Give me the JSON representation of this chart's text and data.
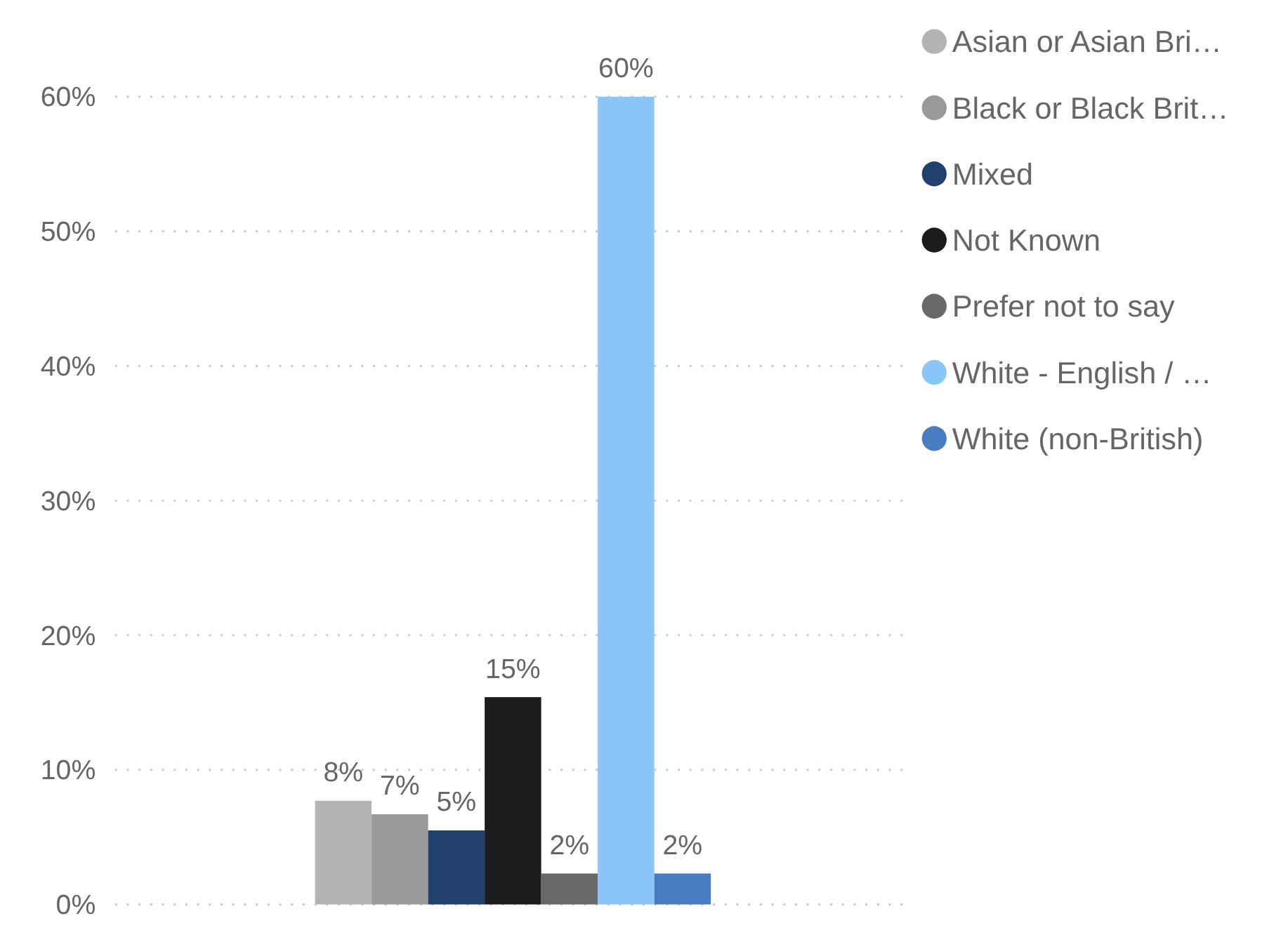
{
  "chart_data": {
    "type": "bar",
    "categories": [
      null
    ],
    "series": [
      {
        "name": "Asian or Asian Bri…",
        "color": "#b3b3b3",
        "values": [
          7.7
        ],
        "value_labels": [
          "8%"
        ]
      },
      {
        "name": "Black or Black Brit…",
        "color": "#999999",
        "values": [
          6.7
        ],
        "value_labels": [
          "7%"
        ]
      },
      {
        "name": "Mixed",
        "color": "#21406e",
        "values": [
          5.5
        ],
        "value_labels": [
          "5%"
        ]
      },
      {
        "name": "Not Known",
        "color": "#1c1c1c",
        "values": [
          15.4
        ],
        "value_labels": [
          "15%"
        ]
      },
      {
        "name": "Prefer not to say",
        "color": "#696969",
        "values": [
          2.3
        ],
        "value_labels": [
          "2%"
        ]
      },
      {
        "name": "White - English / …",
        "color": "#8ac6f7",
        "values": [
          60
        ],
        "value_labels": [
          "60%"
        ]
      },
      {
        "name": "White (non-British)",
        "color": "#4a7cc0",
        "values": [
          2.3
        ],
        "value_labels": [
          "2%"
        ]
      }
    ],
    "ylim": [
      0,
      60
    ],
    "yticks": [
      {
        "value": 0,
        "label": "0%"
      },
      {
        "value": 10,
        "label": "10%"
      },
      {
        "value": 20,
        "label": "20%"
      },
      {
        "value": 30,
        "label": "30%"
      },
      {
        "value": 40,
        "label": "40%"
      },
      {
        "value": 50,
        "label": "50%"
      },
      {
        "value": 60,
        "label": "60%"
      }
    ],
    "grid": "y",
    "legend": "right"
  }
}
